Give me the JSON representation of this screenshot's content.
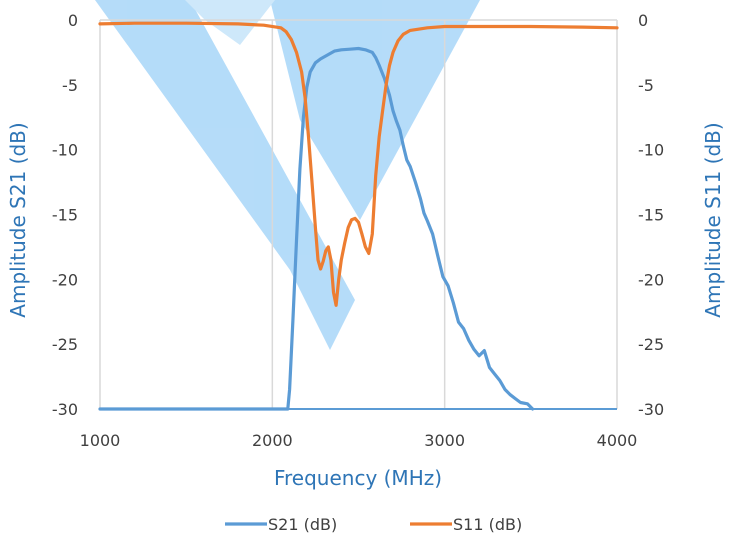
{
  "chart_data": {
    "type": "line",
    "title": "",
    "xlabel": "Frequency (MHz)",
    "ylabel_left": "Amplitude S21 (dB)",
    "ylabel_right": "Amplitude S11 (dB)",
    "xlim": [
      1000,
      4000
    ],
    "ylim": [
      -30,
      0
    ],
    "x_ticks": [
      1000,
      2000,
      3000,
      4000
    ],
    "y_ticks": [
      0,
      -5,
      -10,
      -15,
      -20,
      -25,
      -30
    ],
    "x_tick_labels": [
      "1000",
      "2000",
      "3000",
      "4000"
    ],
    "y_tick_labels": [
      "0",
      "-5",
      "-10",
      "-15",
      "-20",
      "-25",
      "-30"
    ],
    "grid": "vertical",
    "legend_position": "bottom",
    "colors": {
      "axis_title": "#2E75B6",
      "grid": "#d9d9d9",
      "watermark": "#9fd2f7"
    },
    "series": [
      {
        "name": "S21 (dB)",
        "axis": "left",
        "color": "#5B9BD5",
        "points": [
          [
            1000,
            -30
          ],
          [
            2090,
            -30
          ],
          [
            2100,
            -28.5
          ],
          [
            2120,
            -23
          ],
          [
            2140,
            -17
          ],
          [
            2160,
            -11.5
          ],
          [
            2180,
            -7.5
          ],
          [
            2200,
            -5.2
          ],
          [
            2220,
            -4.0
          ],
          [
            2250,
            -3.3
          ],
          [
            2280,
            -3.0
          ],
          [
            2320,
            -2.7
          ],
          [
            2360,
            -2.4
          ],
          [
            2400,
            -2.3
          ],
          [
            2450,
            -2.25
          ],
          [
            2500,
            -2.2
          ],
          [
            2540,
            -2.3
          ],
          [
            2580,
            -2.5
          ],
          [
            2600,
            -2.9
          ],
          [
            2620,
            -3.5
          ],
          [
            2650,
            -4.5
          ],
          [
            2680,
            -5.8
          ],
          [
            2700,
            -7.0
          ],
          [
            2720,
            -7.8
          ],
          [
            2740,
            -8.5
          ],
          [
            2760,
            -9.7
          ],
          [
            2780,
            -10.8
          ],
          [
            2800,
            -11.3
          ],
          [
            2830,
            -12.5
          ],
          [
            2860,
            -13.8
          ],
          [
            2880,
            -14.9
          ],
          [
            2900,
            -15.5
          ],
          [
            2930,
            -16.5
          ],
          [
            2960,
            -18.2
          ],
          [
            2990,
            -19.8
          ],
          [
            3020,
            -20.5
          ],
          [
            3050,
            -21.8
          ],
          [
            3080,
            -23.3
          ],
          [
            3110,
            -23.8
          ],
          [
            3140,
            -24.7
          ],
          [
            3170,
            -25.4
          ],
          [
            3200,
            -25.9
          ],
          [
            3230,
            -25.5
          ],
          [
            3260,
            -26.8
          ],
          [
            3290,
            -27.3
          ],
          [
            3320,
            -27.8
          ],
          [
            3350,
            -28.5
          ],
          [
            3380,
            -28.9
          ],
          [
            3410,
            -29.2
          ],
          [
            3440,
            -29.5
          ],
          [
            3480,
            -29.6
          ],
          [
            3510,
            -30
          ]
        ]
      },
      {
        "name": "S11 (dB)",
        "axis": "right",
        "color": "#ED7D31",
        "points": [
          [
            1000,
            -0.3
          ],
          [
            1200,
            -0.25
          ],
          [
            1500,
            -0.25
          ],
          [
            1800,
            -0.3
          ],
          [
            1950,
            -0.4
          ],
          [
            2050,
            -0.6
          ],
          [
            2080,
            -0.9
          ],
          [
            2110,
            -1.5
          ],
          [
            2140,
            -2.5
          ],
          [
            2170,
            -4.0
          ],
          [
            2190,
            -6.0
          ],
          [
            2210,
            -9.0
          ],
          [
            2230,
            -12.5
          ],
          [
            2250,
            -16.0
          ],
          [
            2265,
            -18.5
          ],
          [
            2280,
            -19.2
          ],
          [
            2295,
            -18.6
          ],
          [
            2310,
            -17.8
          ],
          [
            2325,
            -17.5
          ],
          [
            2340,
            -18.5
          ],
          [
            2355,
            -21.0
          ],
          [
            2370,
            -22.0
          ],
          [
            2385,
            -20.0
          ],
          [
            2400,
            -18.5
          ],
          [
            2420,
            -17.2
          ],
          [
            2440,
            -16.0
          ],
          [
            2460,
            -15.4
          ],
          [
            2480,
            -15.3
          ],
          [
            2500,
            -15.6
          ],
          [
            2520,
            -16.5
          ],
          [
            2540,
            -17.5
          ],
          [
            2560,
            -18.0
          ],
          [
            2580,
            -16.5
          ],
          [
            2600,
            -12.0
          ],
          [
            2620,
            -9.0
          ],
          [
            2640,
            -7.0
          ],
          [
            2660,
            -5.0
          ],
          [
            2680,
            -3.5
          ],
          [
            2700,
            -2.5
          ],
          [
            2730,
            -1.6
          ],
          [
            2760,
            -1.1
          ],
          [
            2800,
            -0.8
          ],
          [
            2900,
            -0.6
          ],
          [
            3000,
            -0.5
          ],
          [
            3200,
            -0.5
          ],
          [
            3500,
            -0.5
          ],
          [
            3800,
            -0.55
          ],
          [
            4000,
            -0.6
          ]
        ]
      }
    ]
  }
}
